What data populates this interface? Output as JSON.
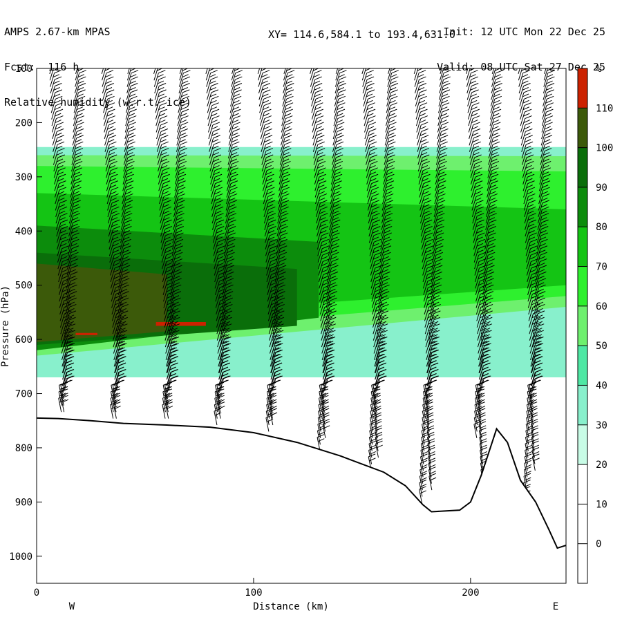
{
  "header": {
    "model": "AMPS 2.67-km MPAS",
    "forecast": "Fcst:  116 h",
    "field": "Relative humidity (w.r.t. ice)",
    "init": "Init: 12 UTC Mon 22 Dec 25",
    "valid": "Valid: 08 UTC Sat 27 Dec 25",
    "xy": "XY= 114.6,584.1 to 193.4,631.0"
  },
  "chart_data": {
    "type": "cross-section",
    "xlabel": "Distance (km)",
    "ylabel": "Pressure (hPa)",
    "xlim": [
      0,
      244
    ],
    "ylim": [
      1050,
      100
    ],
    "x_ticks": [
      0,
      100,
      200
    ],
    "y_ticks": [
      100,
      200,
      300,
      400,
      500,
      600,
      700,
      800,
      900,
      1000
    ],
    "x_end_labels": {
      "left": "W",
      "right": "E"
    },
    "colorbar": {
      "unit": "%",
      "levels": [
        0,
        10,
        20,
        30,
        40,
        50,
        60,
        70,
        80,
        90,
        100,
        110
      ],
      "colors": [
        "#ffffff",
        "#ffffff",
        "#ffffff",
        "#c8fce6",
        "#88f0cc",
        "#4ee8a4",
        "#6ef06e",
        "#2ef02e",
        "#14c414",
        "#0c8c0c",
        "#0a6e0a",
        "#3c5a0a",
        "#cc2200"
      ]
    },
    "terrain_hPa": [
      [
        0,
        745
      ],
      [
        10,
        746
      ],
      [
        25,
        750
      ],
      [
        40,
        755
      ],
      [
        60,
        758
      ],
      [
        80,
        762
      ],
      [
        100,
        772
      ],
      [
        120,
        790
      ],
      [
        140,
        815
      ],
      [
        160,
        845
      ],
      [
        170,
        870
      ],
      [
        178,
        905
      ],
      [
        182,
        918
      ],
      [
        195,
        915
      ],
      [
        200,
        900
      ],
      [
        205,
        850
      ],
      [
        212,
        765
      ],
      [
        217,
        790
      ],
      [
        223,
        860
      ],
      [
        230,
        900
      ],
      [
        236,
        950
      ],
      [
        240,
        985
      ],
      [
        244,
        980
      ]
    ],
    "rh_bands": [
      {
        "value": 30,
        "x": [
          0,
          244
        ],
        "top": [
          245,
          245
        ],
        "bottom": [
          670,
          670
        ]
      },
      {
        "value": 50,
        "x": [
          0,
          244
        ],
        "top": [
          260,
          262
        ],
        "bottom": [
          630,
          540
        ]
      },
      {
        "value": 60,
        "x": [
          0,
          244
        ],
        "top": [
          280,
          290
        ],
        "bottom": [
          600,
          520
        ]
      },
      {
        "value": 70,
        "x": [
          0,
          244
        ],
        "top": [
          330,
          360
        ],
        "bottom": [
          570,
          500
        ]
      },
      {
        "value": 80,
        "x": [
          0,
          130
        ],
        "top": [
          390,
          420
        ],
        "bottom": [
          620,
          560
        ]
      },
      {
        "value": 90,
        "x": [
          0,
          120
        ],
        "top": [
          440,
          470
        ],
        "bottom": [
          610,
          575
        ]
      },
      {
        "value": 100,
        "x": [
          0,
          60
        ],
        "top": [
          460,
          480
        ],
        "bottom": [
          605,
          585
        ]
      },
      {
        "value": 110,
        "x": [
          55,
          78
        ],
        "top": [
          568,
          568
        ],
        "bottom": [
          575,
          575
        ]
      },
      {
        "value": 110,
        "x": [
          18,
          28
        ],
        "top": [
          588,
          588
        ],
        "bottom": [
          592,
          592
        ]
      }
    ],
    "barb_columns_km": [
      6,
      18,
      30,
      42,
      54,
      66,
      78,
      90,
      102,
      114,
      126,
      138,
      150,
      162,
      174,
      186,
      198,
      210,
      222,
      234
    ]
  }
}
